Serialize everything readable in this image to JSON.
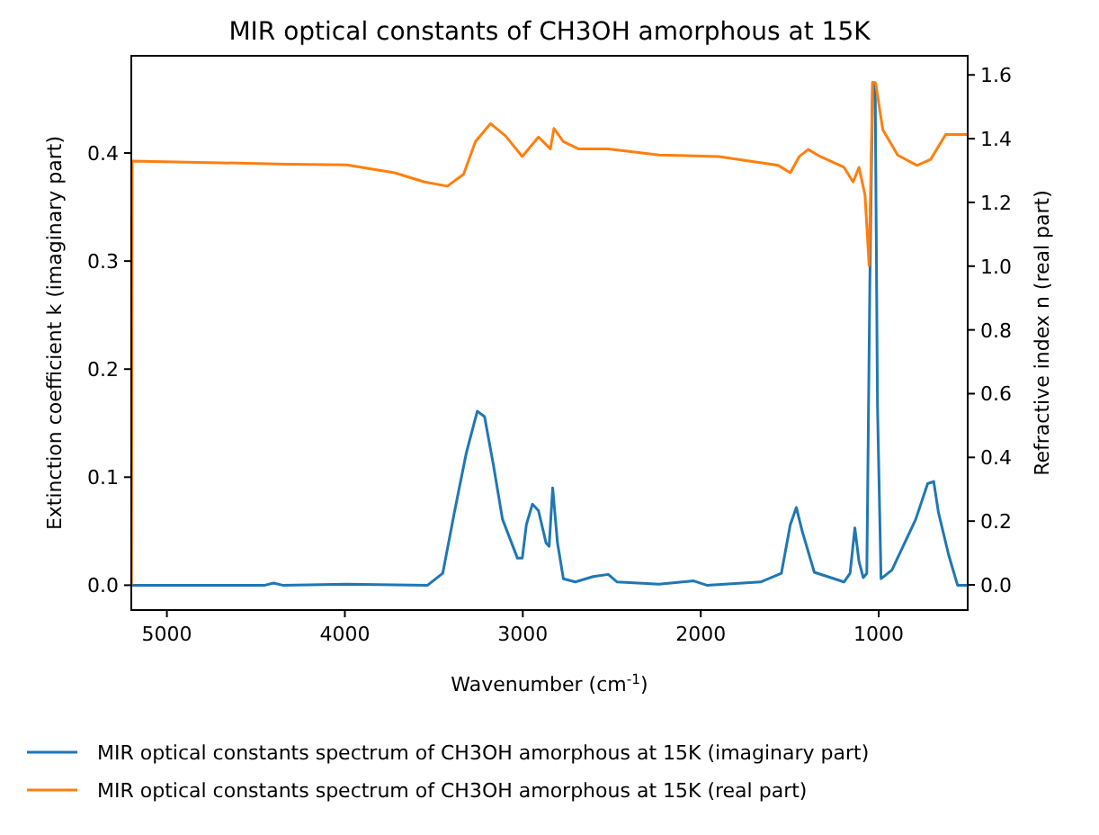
{
  "chart_data": {
    "type": "line",
    "title": "MIR optical constants of CH3OH amorphous at 15K",
    "xlabel": "Wavenumber (cm$^{-1}$)",
    "ylabel": "Extinction coefficient k (imaginary part)",
    "y2label": "Refractive index n (real part)",
    "xlim": [
      5200,
      500
    ],
    "xticks": [
      5000,
      4000,
      3000,
      2000,
      1000
    ],
    "ylim": [
      -0.023,
      0.49
    ],
    "yticks": [
      {
        "value": 0,
        "label": "0.0"
      },
      {
        "value": 0.1,
        "label": "0.1"
      },
      {
        "value": 0.2,
        "label": "0.2"
      },
      {
        "value": 0.3,
        "label": "0.3"
      },
      {
        "value": 0.4,
        "label": "0.4"
      }
    ],
    "y2lim": [
      -0.079,
      1.66
    ],
    "y2ticks": [
      {
        "value": 0,
        "label": "0.0"
      },
      {
        "value": 0.2,
        "label": "0.2"
      },
      {
        "value": 0.4,
        "label": "0.4"
      },
      {
        "value": 0.6,
        "label": "0.6"
      },
      {
        "value": 0.8,
        "label": "0.8"
      },
      {
        "value": 1,
        "label": "1.0"
      },
      {
        "value": 1.2,
        "label": "1.2"
      },
      {
        "value": 1.4,
        "label": "1.4"
      },
      {
        "value": 1.6,
        "label": "1.6"
      }
    ],
    "grid": false,
    "legend": "bottom",
    "marker": "none",
    "line_style": "solid",
    "series": [
      {
        "name": "MIR optical constants spectrum of CH3OH amorphous at 15K (imaginary part)",
        "color": "#1f77b4",
        "x": [
          5200,
          4450,
          4400,
          4350,
          3990,
          3535,
          3450,
          3385,
          3318,
          3256,
          3215,
          3165,
          3114,
          3030,
          3003,
          2980,
          2946,
          2912,
          2869,
          2852,
          2832,
          2805,
          2772,
          2705,
          2604,
          2520,
          2470,
          2235,
          2040,
          1966,
          1664,
          1547,
          1497,
          1463,
          1430,
          1362,
          1195,
          1161,
          1134,
          1111,
          1087,
          1067,
          1050,
          1034,
          1020,
          1007,
          987,
          926,
          792,
          725,
          691,
          664,
          607,
          557,
          500
        ],
        "values": [
          0,
          0,
          0.002,
          0,
          0.001,
          0,
          0.011,
          0.067,
          0.122,
          0.161,
          0.156,
          0.111,
          0.061,
          0.025,
          0.025,
          0.056,
          0.075,
          0.069,
          0.039,
          0.036,
          0.09,
          0.039,
          0.006,
          0.003,
          0.008,
          0.01,
          0.003,
          0.001,
          0.004,
          0,
          0.003,
          0.011,
          0.056,
          0.072,
          0.05,
          0.012,
          0.003,
          0.011,
          0.053,
          0.022,
          0.007,
          0.011,
          0.278,
          0.465,
          0.465,
          0.167,
          0.006,
          0.014,
          0.061,
          0.094,
          0.096,
          0.067,
          0.028,
          0,
          0
        ]
      },
      {
        "name": "MIR optical constants spectrum of CH3OH amorphous at 15K (real part)",
        "color": "#ff7f0e",
        "axis": "y2",
        "x": [
          5199,
          5195,
          4327,
          3990,
          3721,
          3552,
          3424,
          3333,
          3266,
          3182,
          3098,
          3003,
          2912,
          2845,
          2825,
          2772,
          2688,
          2520,
          2235,
          1899,
          1564,
          1497,
          1446,
          1396,
          1329,
          1195,
          1144,
          1111,
          1077,
          1054,
          1034,
          1017,
          977,
          893,
          785,
          708,
          624,
          500
        ],
        "values": [
          0,
          1.33,
          1.32,
          1.318,
          1.293,
          1.264,
          1.251,
          1.288,
          1.391,
          1.447,
          1.409,
          1.344,
          1.405,
          1.368,
          1.432,
          1.391,
          1.368,
          1.368,
          1.349,
          1.344,
          1.316,
          1.293,
          1.344,
          1.366,
          1.344,
          1.31,
          1.264,
          1.31,
          1.223,
          1.002,
          1.577,
          1.573,
          1.428,
          1.348,
          1.316,
          1.335,
          1.413,
          1.413
        ]
      }
    ]
  }
}
